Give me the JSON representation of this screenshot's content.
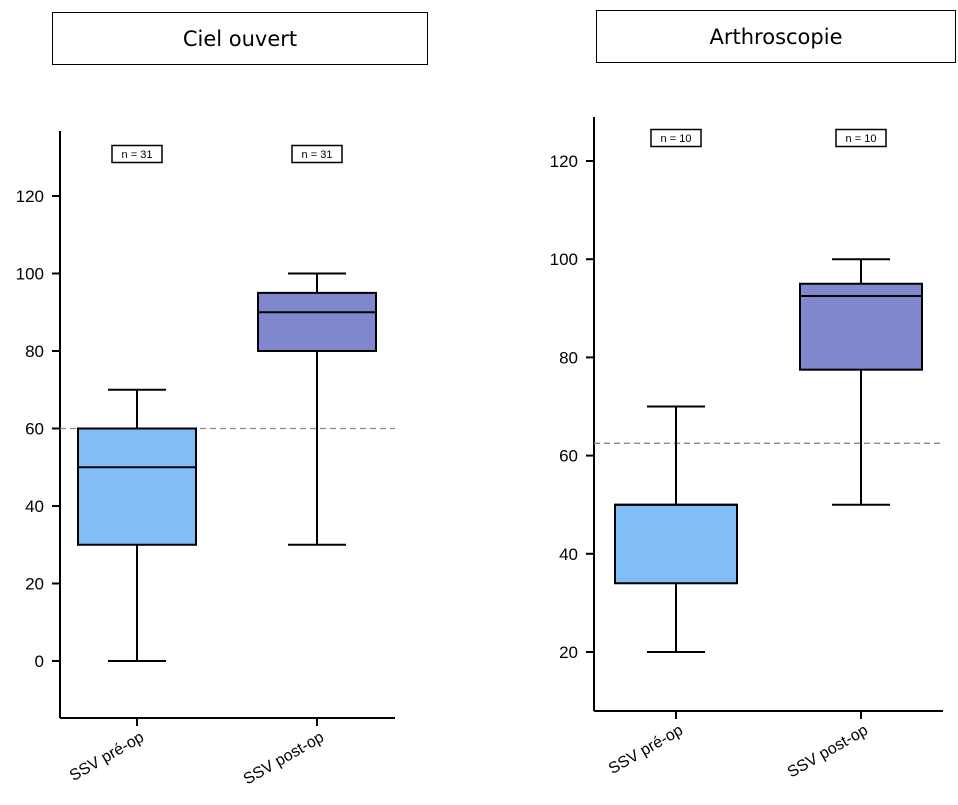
{
  "panels": [
    {
      "title": "Ciel ouvert"
    },
    {
      "title": "Arthroscopie"
    }
  ],
  "chart_data": [
    {
      "type": "box",
      "title": "Ciel ouvert",
      "categories": [
        "SSV pré-op",
        "SSV post-op"
      ],
      "ylim": [
        -15,
        135
      ],
      "yticks": [
        0,
        20,
        40,
        60,
        80,
        100,
        120
      ],
      "boxes": [
        {
          "category": "SSV pré-op",
          "min": 0,
          "q1": 30,
          "median": 50,
          "q3": 60,
          "max": 70,
          "n_label": "n = 31",
          "color": "#82bdf7"
        },
        {
          "category": "SSV post-op",
          "min": 30,
          "q1": 80,
          "median": 90,
          "q3": 95,
          "max": 100,
          "n_label": "n = 31",
          "color": "#8087cf"
        }
      ],
      "reference_line": 60,
      "grid": false
    },
    {
      "type": "box",
      "title": "Arthroscopie",
      "categories": [
        "SSV pré-op",
        "SSV post-op"
      ],
      "ylim": [
        8,
        129
      ],
      "yticks": [
        20,
        40,
        60,
        80,
        100,
        120
      ],
      "boxes": [
        {
          "category": "SSV pré-op",
          "min": 20,
          "q1": 34,
          "median": 50,
          "q3": 50,
          "max": 70,
          "n_label": "n = 10",
          "color": "#82bdf7"
        },
        {
          "category": "SSV post-op",
          "min": 50,
          "q1": 77.5,
          "median": 92.5,
          "q3": 95,
          "max": 100,
          "n_label": "n = 10",
          "color": "#8087cf"
        }
      ],
      "reference_line": 62.5,
      "grid": false
    }
  ]
}
